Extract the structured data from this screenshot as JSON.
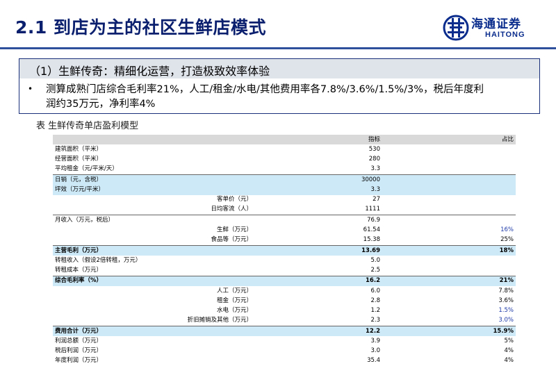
{
  "header": {
    "title": "2.1 到店为主的社区生鲜店模式",
    "logo_cn": "海通证券",
    "logo_en": "HAITONG"
  },
  "box": {
    "heading": "（1）生鲜传奇：精细化运营，打造极致效率体验",
    "bullet": "•",
    "line1": "测算成熟门店综合毛利率21%，人工/租金/水电/其他费用率各7.8%/3.6%/1.5%/3%，税后年度利",
    "line2": "润约35万元，净利率4%"
  },
  "caption": "表 生鲜传奇单店盈利模型",
  "table": {
    "col_indicator": "指标",
    "col_ratio": "占比",
    "rows": [
      {
        "label": "建筑面积（平米）",
        "value": "530",
        "ratio": ""
      },
      {
        "label": "经营面积（平米）",
        "value": "280",
        "ratio": ""
      },
      {
        "label": "平均租金（元/平米/天）",
        "value": "3.3",
        "ratio": ""
      },
      {
        "label": "日销（元，含税）",
        "value": "30000",
        "ratio": ""
      },
      {
        "label": "坪效（万元/平米）",
        "value": "3.3",
        "ratio": ""
      },
      {
        "label": "客单价（元）",
        "value": "27",
        "ratio": ""
      },
      {
        "label": "日均客流（人）",
        "value": "1111",
        "ratio": ""
      },
      {
        "label": "月收入（万元，税后）",
        "value": "76.9",
        "ratio": ""
      },
      {
        "label": "生鲜（万元）",
        "value": "61.54",
        "ratio": "16%"
      },
      {
        "label": "食品等（万元）",
        "value": "15.38",
        "ratio": "25%"
      },
      {
        "label": "主营毛利（万元）",
        "value": "13.69",
        "ratio": "18%"
      },
      {
        "label": "转租收入（假设2倍转租，万元）",
        "value": "5.0",
        "ratio": ""
      },
      {
        "label": "转租成本（万元）",
        "value": "2.5",
        "ratio": ""
      },
      {
        "label": "综合毛利率（%）",
        "value": "16.2",
        "ratio": "21%"
      },
      {
        "label": "人工（万元）",
        "value": "6.0",
        "ratio": "7.8%"
      },
      {
        "label": "租金（万元）",
        "value": "2.8",
        "ratio": "3.6%"
      },
      {
        "label": "水电（万元）",
        "value": "1.2",
        "ratio": "1.5%"
      },
      {
        "label": "折旧摊销及其他（万元）",
        "value": "2.3",
        "ratio": "3.0%"
      },
      {
        "label": "费用合计（万元）",
        "value": "12.2",
        "ratio": "15.9%"
      },
      {
        "label": "利润总额（万元）",
        "value": "3.9",
        "ratio": "5%"
      },
      {
        "label": "税后利润（万元）",
        "value": "3.0",
        "ratio": "4%"
      },
      {
        "label": "年度利润（万元）",
        "value": "35.4",
        "ratio": "4%"
      }
    ]
  }
}
